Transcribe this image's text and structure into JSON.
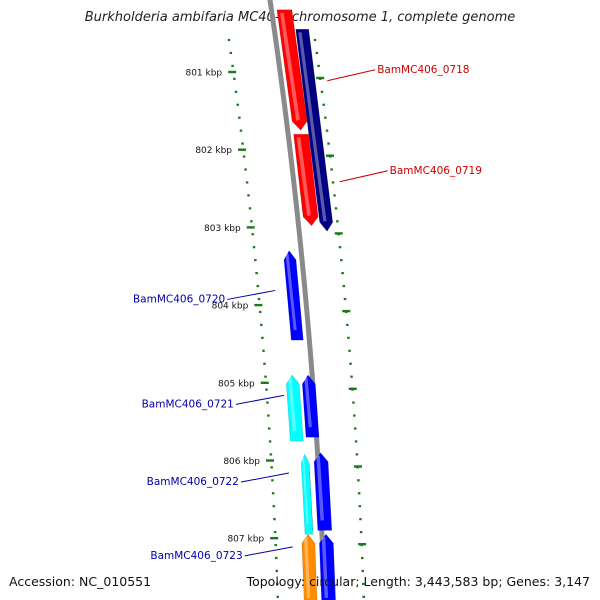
{
  "title": "Burkholderia ambifaria MC40-6 chromosome 1, complete genome",
  "footer": {
    "accession_label": "Accession:",
    "accession": "NC_010551",
    "topology_label": "Topology:",
    "topology": "circular",
    "length_label": "Length:",
    "length": "3,443,583 bp",
    "genes_label": "Genes:",
    "genes": "3,147"
  },
  "colors": {
    "backbone": "#8a8a8a",
    "tick": "#1a7a1a",
    "tick_label": "#111111",
    "label_forward": "#cc0000",
    "label_reverse": "#0000aa"
  },
  "scale": {
    "unit": "kbp",
    "ticks": [
      {
        "kbp": 801,
        "label": "801 kbp"
      },
      {
        "kbp": 802,
        "label": "802 kbp"
      },
      {
        "kbp": 803,
        "label": "803 kbp"
      },
      {
        "kbp": 804,
        "label": "804 kbp"
      },
      {
        "kbp": 805,
        "label": "805 kbp"
      },
      {
        "kbp": 806,
        "label": "806 kbp"
      },
      {
        "kbp": 807,
        "label": "807 kbp"
      }
    ]
  },
  "features": [
    {
      "name": "red-gene-upper",
      "color": "#ff0000",
      "strand": "forward",
      "start_kbp": 800.2,
      "end_kbp": 801.75
    },
    {
      "name": "red-gene-lower",
      "color": "#ff0000",
      "strand": "forward",
      "start_kbp": 801.8,
      "end_kbp": 802.98
    },
    {
      "name": "navy-gene",
      "color": "#000080",
      "strand": "forward",
      "start_kbp": 800.45,
      "end_kbp": 803.05
    },
    {
      "name": "blue-gene-upper",
      "color": "#0000ff",
      "strand": "reverse",
      "start_kbp": 803.3,
      "end_kbp": 804.45
    },
    {
      "name": "blue-gene-middle",
      "color": "#0000ff",
      "strand": "reverse",
      "start_kbp": 804.9,
      "end_kbp": 805.7
    },
    {
      "name": "blue-gene-lower",
      "color": "#0000ff",
      "strand": "reverse",
      "start_kbp": 805.9,
      "end_kbp": 806.9
    },
    {
      "name": "blue-gene-bottom",
      "color": "#0000ff",
      "strand": "reverse",
      "start_kbp": 806.95,
      "end_kbp": 807.9
    },
    {
      "name": "navy-small-gene",
      "color": "#000080",
      "strand": "reverse",
      "start_kbp": 805.95,
      "end_kbp": 806.9
    },
    {
      "name": "cyan-gene-upper",
      "color": "#00ffff",
      "strand": "reverse",
      "start_kbp": 804.9,
      "end_kbp": 805.75
    },
    {
      "name": "cyan-gene-lower",
      "color": "#00ffff",
      "strand": "reverse",
      "start_kbp": 805.92,
      "end_kbp": 806.95
    },
    {
      "name": "orange-gene",
      "color": "#ff8c00",
      "strand": "reverse",
      "start_kbp": 806.95,
      "end_kbp": 807.9
    }
  ],
  "gene_labels": [
    {
      "text": "BamMC406_0718",
      "strand": "forward",
      "at_kbp": 801.1
    },
    {
      "text": "BamMC406_0719",
      "strand": "forward",
      "at_kbp": 802.4
    },
    {
      "text": "BamMC406_0720",
      "strand": "reverse",
      "at_kbp": 803.85
    },
    {
      "text": "BamMC406_0721",
      "strand": "reverse",
      "at_kbp": 805.2
    },
    {
      "text": "BamMC406_0722",
      "strand": "reverse",
      "at_kbp": 806.2
    },
    {
      "text": "BamMC406_0723",
      "strand": "reverse",
      "at_kbp": 807.15
    }
  ]
}
